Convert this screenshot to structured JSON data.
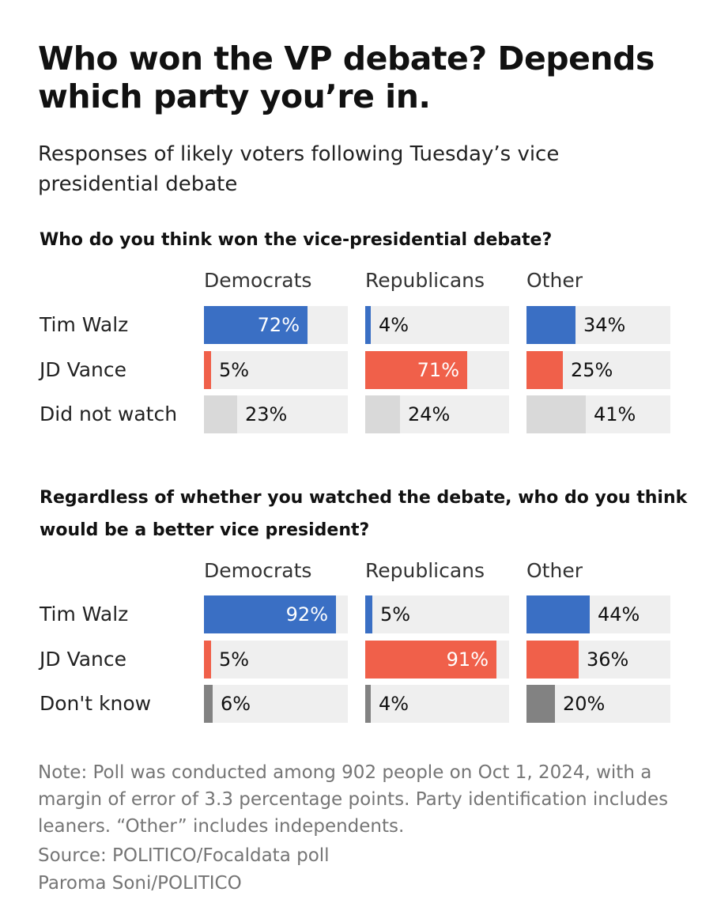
{
  "title": "Who won the VP debate? Depends which party you’re in.",
  "subtitle": "Responses of likely voters following Tuesday’s vice presidential debate",
  "colors": {
    "walz": "#3a6fc4",
    "vance": "#f0604a",
    "did_not_watch": "#d9d9d9",
    "dont_know": "#828282",
    "track": "#efefef"
  },
  "chart_data": [
    {
      "type": "bar",
      "title": "Who do you think won the vice-presidential debate?",
      "categories": [
        "Democrats",
        "Republicans",
        "Other"
      ],
      "series": [
        {
          "name": "Tim Walz",
          "values": [
            72,
            4,
            34
          ],
          "labels": [
            "72%",
            "4%",
            "34%"
          ]
        },
        {
          "name": "JD Vance",
          "values": [
            5,
            71,
            25
          ],
          "labels": [
            "5%",
            "71%",
            "25%"
          ]
        },
        {
          "name": "Did not watch",
          "values": [
            23,
            24,
            41
          ],
          "labels": [
            "23%",
            "24%",
            "41%"
          ]
        }
      ],
      "ylim": [
        0,
        100
      ]
    },
    {
      "type": "bar",
      "title": "Regardless of whether you watched the debate, who do you think would be a better vice president?",
      "categories": [
        "Democrats",
        "Republicans",
        "Other"
      ],
      "series": [
        {
          "name": "Tim Walz",
          "values": [
            92,
            5,
            44
          ],
          "labels": [
            "92%",
            "5%",
            "44%"
          ]
        },
        {
          "name": "JD Vance",
          "values": [
            5,
            91,
            36
          ],
          "labels": [
            "5%",
            "91%",
            "36%"
          ]
        },
        {
          "name": "Don't know",
          "values": [
            6,
            4,
            20
          ],
          "labels": [
            "6%",
            "4%",
            "20%"
          ]
        }
      ],
      "ylim": [
        0,
        100
      ]
    }
  ],
  "note": "Note: Poll was conducted among 902 people on Oct 1, 2024, with a margin of error of 3.3 percentage points. Party identification includes leaners. “Other” includes independents.",
  "source": "Source: POLITICO/Focaldata poll",
  "credit": "Paroma Soni/POLITICO"
}
